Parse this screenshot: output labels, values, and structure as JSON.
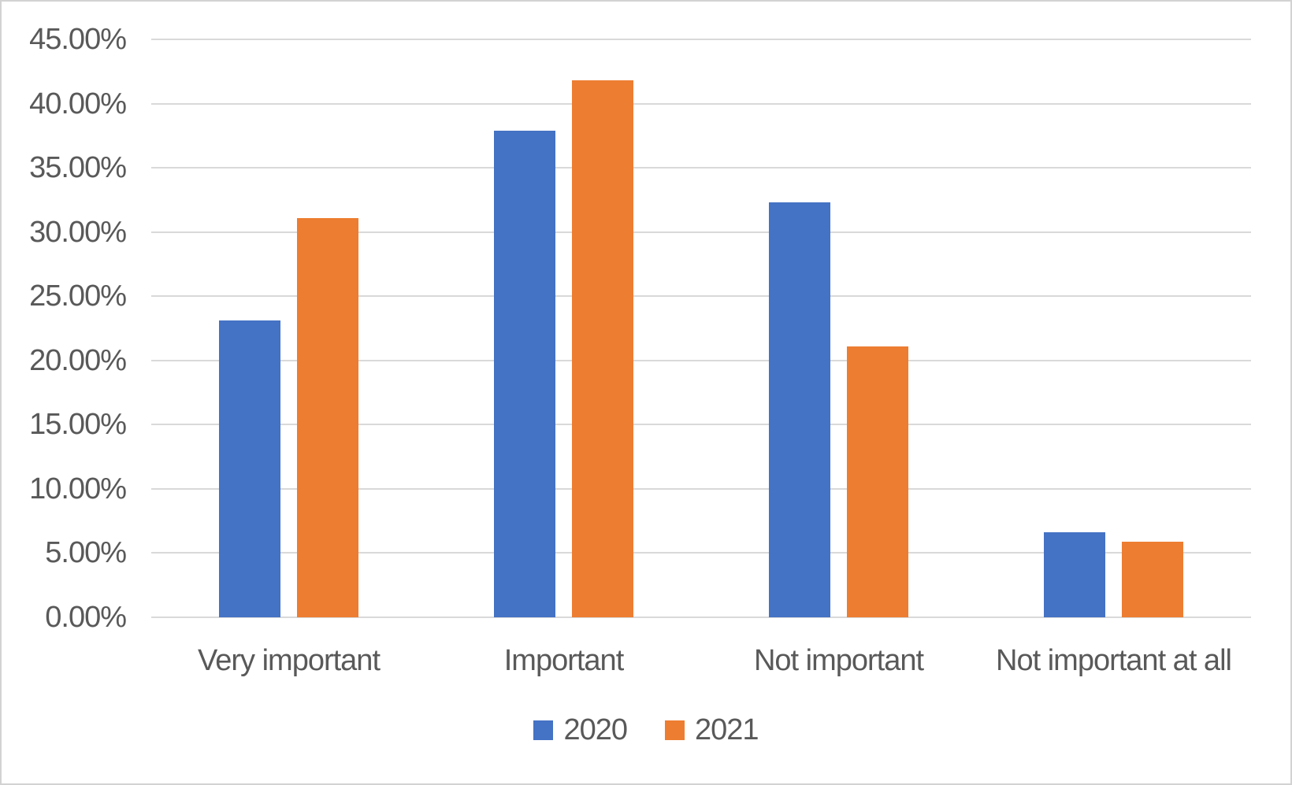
{
  "chart_data": {
    "type": "bar",
    "categories": [
      "Very important",
      "Important",
      "Not important",
      "Not important at all"
    ],
    "series": [
      {
        "name": "2020",
        "color": "#4472C4",
        "values": [
          23.1,
          37.9,
          32.3,
          6.6
        ]
      },
      {
        "name": "2021",
        "color": "#ED7D31",
        "values": [
          31.1,
          41.8,
          21.1,
          5.9
        ]
      }
    ],
    "ylim": [
      0,
      45
    ],
    "ytick_step": 5,
    "ytick_labels": [
      "45.00%",
      "40.00%",
      "35.00%",
      "30.00%",
      "25.00%",
      "20.00%",
      "15.00%",
      "10.00%",
      "5.00%",
      "0.00%"
    ],
    "value_unit": "percent",
    "grid": true,
    "legend_position": "bottom",
    "colors": {
      "axis_text": "#595959",
      "gridline": "#D9D9D9",
      "plot_border": "#D2D2D2",
      "background": "#FFFFFF"
    }
  }
}
